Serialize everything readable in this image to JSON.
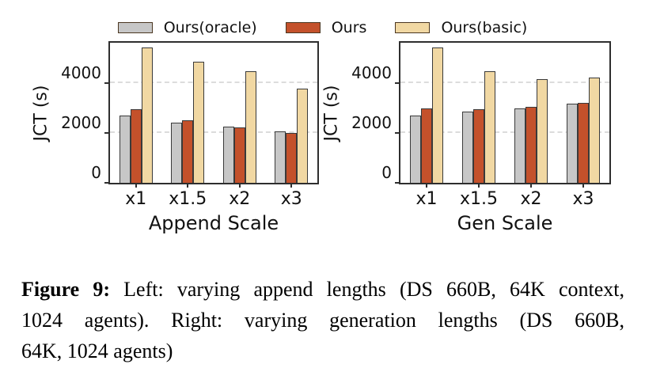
{
  "legend": {
    "items": [
      {
        "label": "Ours(oracle)",
        "color": "#c7c7c7"
      },
      {
        "label": "Ours",
        "color": "#c4512b"
      },
      {
        "label": "Ours(basic)",
        "color": "#f1d8a3"
      }
    ]
  },
  "chart_data": [
    {
      "type": "bar",
      "categories": [
        "x1",
        "x1.5",
        "x2",
        "x3"
      ],
      "series": [
        {
          "name": "Ours(oracle)",
          "color": "#c7c7c7",
          "values": [
            2700,
            2400,
            2250,
            2050
          ]
        },
        {
          "name": "Ours",
          "color": "#c4512b",
          "values": [
            2950,
            2500,
            2230,
            1980
          ]
        },
        {
          "name": "Ours(basic)",
          "color": "#f1d8a3",
          "values": [
            5400,
            4850,
            4450,
            3750
          ]
        }
      ],
      "title": "",
      "xlabel": "Append Scale",
      "ylabel": "JCT (s)",
      "ylim": [
        0,
        5600
      ],
      "yticks": [
        0,
        2000,
        4000
      ],
      "grid": "horizontal dashed at yticks",
      "legend_position": "top shared"
    },
    {
      "type": "bar",
      "categories": [
        "x1",
        "x1.5",
        "x2",
        "x3"
      ],
      "series": [
        {
          "name": "Ours(oracle)",
          "color": "#c7c7c7",
          "values": [
            2700,
            2850,
            2980,
            3150
          ]
        },
        {
          "name": "Ours",
          "color": "#c4512b",
          "values": [
            2980,
            2950,
            3050,
            3180
          ]
        },
        {
          "name": "Ours(basic)",
          "color": "#f1d8a3",
          "values": [
            5400,
            4450,
            4150,
            4200
          ]
        }
      ],
      "title": "",
      "xlabel": "Gen Scale",
      "ylabel": "JCT (s)",
      "ylim": [
        0,
        5600
      ],
      "yticks": [
        0,
        2000,
        4000
      ],
      "grid": "horizontal dashed at yticks",
      "legend_position": "top shared"
    }
  ],
  "caption": {
    "prefix": "Figure 9:",
    "line1": " Left: varying append lengths (DS 660B, 64K context,",
    "line2": "1024 agents). Right: varying generation lengths (DS 660B,",
    "line3": "64K, 1024 agents)"
  }
}
